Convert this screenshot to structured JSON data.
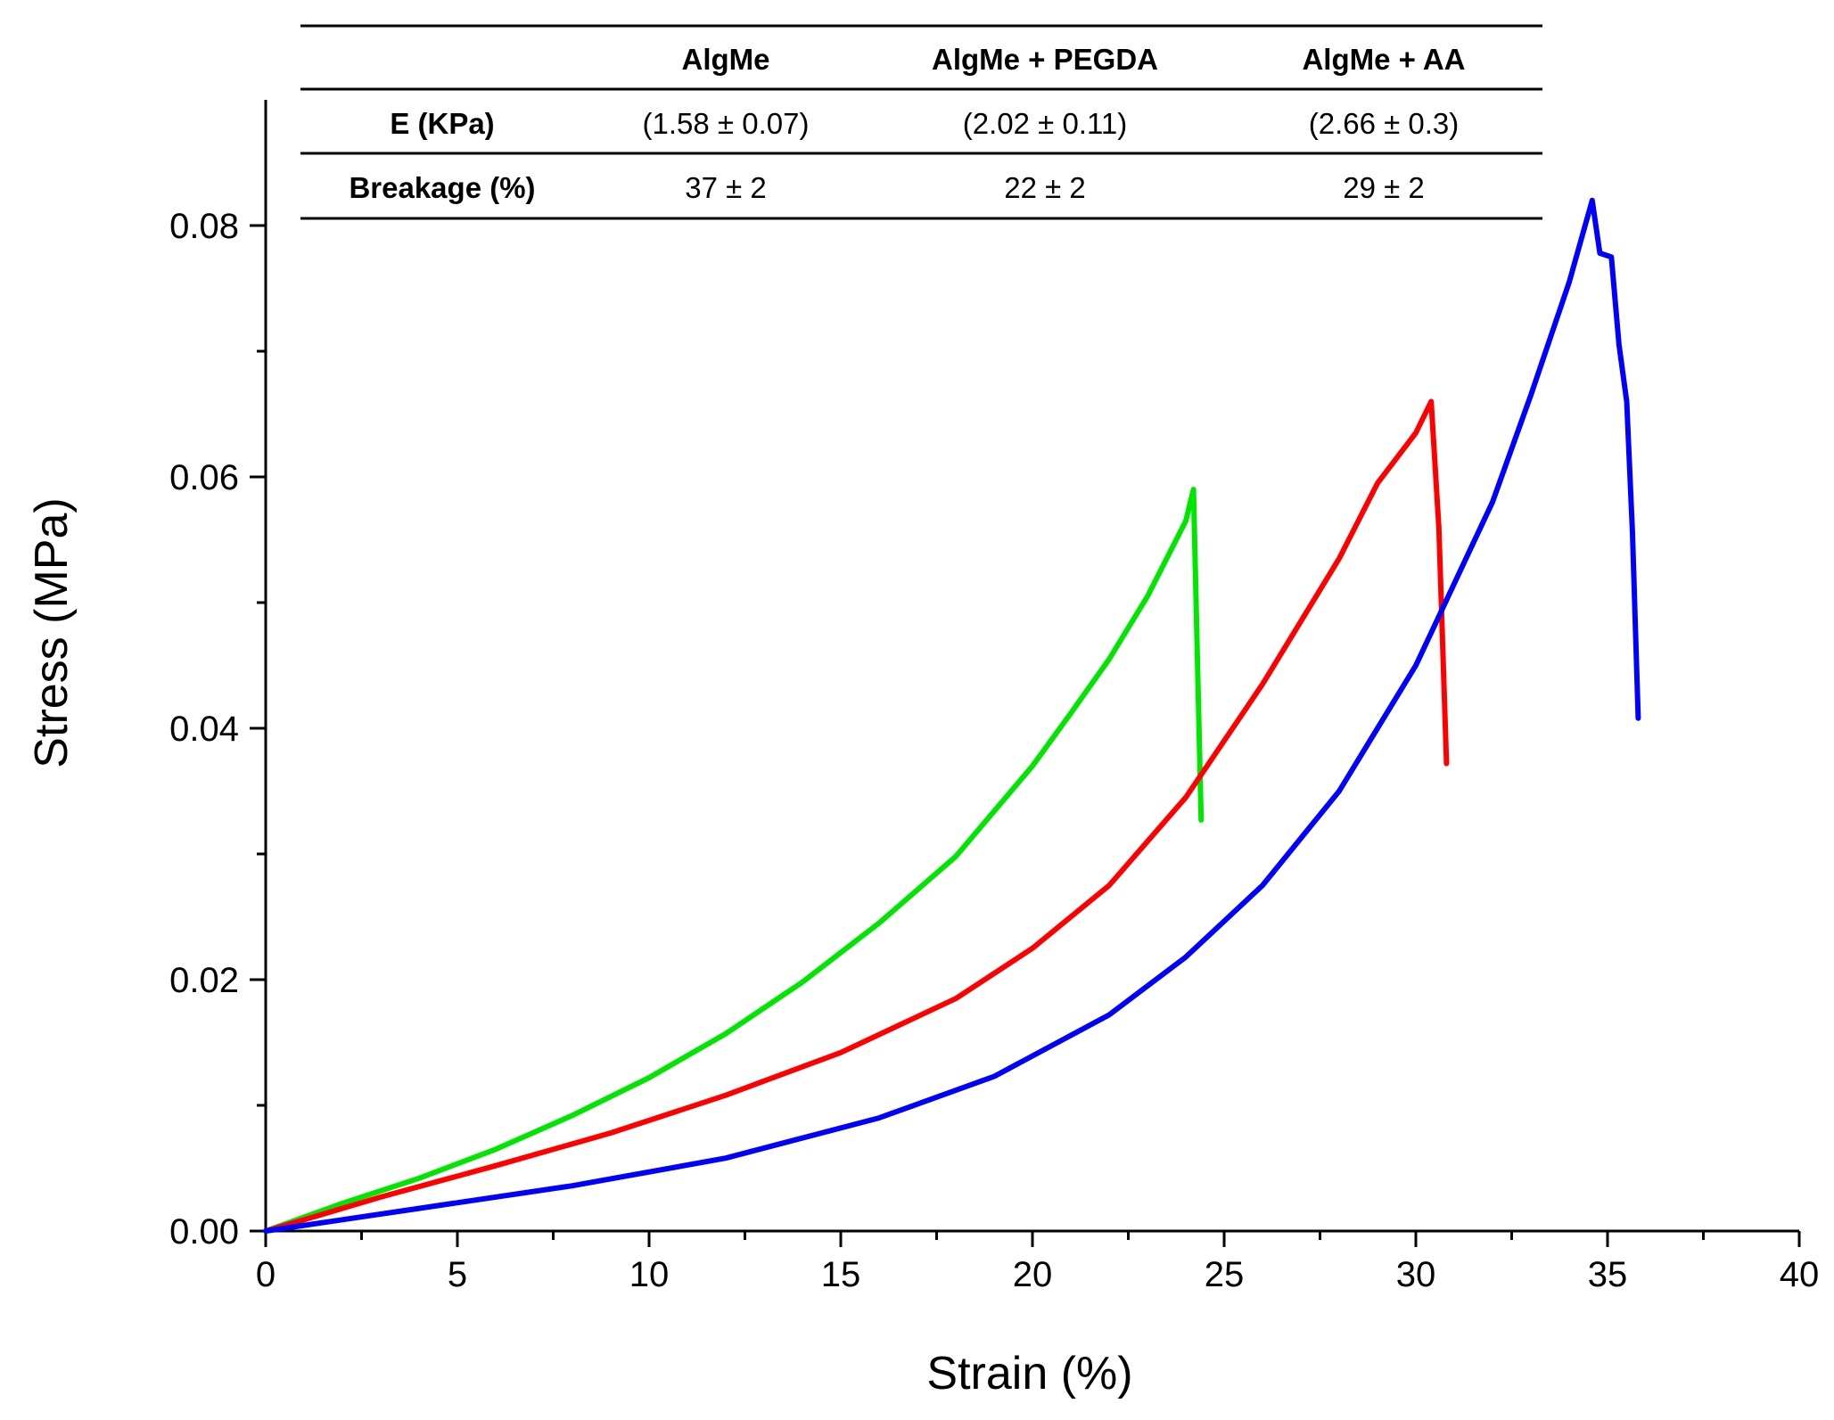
{
  "chart_data": {
    "type": "line",
    "xlabel": "Strain (%)",
    "ylabel": "Stress (MPa)",
    "xlim": [
      0,
      40
    ],
    "ylim": [
      0,
      0.09
    ],
    "x_ticks": [
      "0",
      "5",
      "10",
      "15",
      "20",
      "25",
      "30",
      "35",
      "40"
    ],
    "y_ticks": [
      "0.00",
      "0.02",
      "0.04",
      "0.06",
      "0.08"
    ],
    "series": [
      {
        "name": "AlgMe + PEGDA",
        "color": "#00e600",
        "x": [
          0,
          2,
          4,
          6,
          8,
          10,
          12,
          14,
          16,
          18,
          20,
          21,
          22,
          23,
          24,
          24.2,
          24.4
        ],
        "y": [
          0,
          0.0022,
          0.0042,
          0.0065,
          0.0092,
          0.0122,
          0.0157,
          0.0198,
          0.0245,
          0.0298,
          0.037,
          0.0412,
          0.0455,
          0.0505,
          0.0565,
          0.059,
          0.0327
        ]
      },
      {
        "name": "AlgMe + AA",
        "color": "#ff0000",
        "x": [
          0,
          3,
          6,
          9,
          12,
          15,
          18,
          20,
          22,
          24,
          26,
          28,
          29,
          30,
          30.4,
          30.6,
          30.8
        ],
        "y": [
          0,
          0.0027,
          0.0052,
          0.0078,
          0.0108,
          0.0142,
          0.0185,
          0.0225,
          0.0275,
          0.0345,
          0.0435,
          0.0535,
          0.0595,
          0.0635,
          0.066,
          0.056,
          0.0372
        ]
      },
      {
        "name": "AlgMe",
        "color": "#0000ff",
        "x": [
          0,
          4,
          8,
          12,
          16,
          19,
          22,
          24,
          26,
          28,
          30,
          32,
          33,
          34,
          34.6,
          34.8,
          35.1,
          35.3,
          35.5,
          35.65,
          35.8
        ],
        "y": [
          0,
          0.0018,
          0.0036,
          0.0058,
          0.009,
          0.0123,
          0.0172,
          0.0218,
          0.0275,
          0.035,
          0.045,
          0.058,
          0.0665,
          0.0755,
          0.082,
          0.0778,
          0.0775,
          0.0705,
          0.066,
          0.0555,
          0.0408
        ]
      }
    ]
  },
  "table": {
    "headers": [
      "",
      "AlgMe",
      "AlgMe + PEGDA",
      "AlgMe + AA"
    ],
    "rows": [
      {
        "label": "E (KPa)",
        "values": [
          "(1.58 ± 0.07)",
          "(2.02 ± 0.11)",
          "(2.66 ± 0.3)"
        ]
      },
      {
        "label": "Breakage (%)",
        "values": [
          "37 ± 2",
          "22 ± 2",
          "29 ± 2"
        ]
      }
    ]
  }
}
